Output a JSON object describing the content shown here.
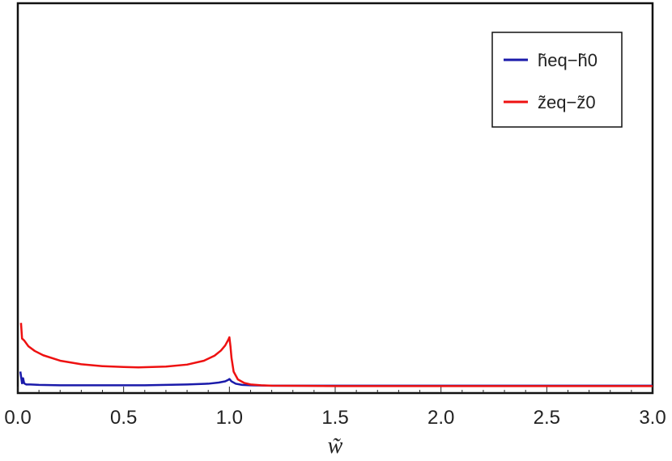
{
  "chart_data": {
    "type": "line",
    "title": "",
    "xlabel": "w̃",
    "ylabel": "",
    "xlim": [
      0,
      3
    ],
    "ylim": [
      0,
      1
    ],
    "xticks": [
      "0.0",
      "0.5",
      "1.0",
      "1.5",
      "2.0",
      "2.5",
      "3.0"
    ],
    "yticks": [],
    "grid": false,
    "legend_position": "top-right",
    "series": [
      {
        "name": "h̃eq−h̃0",
        "color": "#1a1aaa",
        "x": [
          0.012,
          0.02,
          0.025,
          0.03,
          0.04,
          0.06,
          0.1,
          0.2,
          0.4,
          0.6,
          0.8,
          0.9,
          0.95,
          0.98,
          0.995,
          1.0,
          1.01,
          1.03,
          1.06,
          1.1,
          1.2,
          1.5,
          2.0,
          2.5,
          3.0
        ],
        "y": [
          0.055,
          0.025,
          0.038,
          0.025,
          0.022,
          0.022,
          0.021,
          0.02,
          0.02,
          0.02,
          0.022,
          0.024,
          0.027,
          0.03,
          0.034,
          0.036,
          0.03,
          0.024,
          0.021,
          0.02,
          0.019,
          0.019,
          0.019,
          0.019,
          0.019
        ]
      },
      {
        "name": "z̃eq−z̃0",
        "color": "#ee1111",
        "x": [
          0.015,
          0.02,
          0.03,
          0.05,
          0.08,
          0.12,
          0.2,
          0.3,
          0.4,
          0.5,
          0.57,
          0.7,
          0.8,
          0.88,
          0.93,
          0.96,
          0.98,
          0.995,
          1.0,
          1.005,
          1.01,
          1.02,
          1.04,
          1.07,
          1.1,
          1.15,
          1.2,
          1.5,
          2.0,
          2.5,
          3.0
        ],
        "y": [
          0.18,
          0.14,
          0.135,
          0.12,
          0.108,
          0.097,
          0.083,
          0.074,
          0.069,
          0.067,
          0.066,
          0.068,
          0.073,
          0.083,
          0.096,
          0.109,
          0.122,
          0.137,
          0.143,
          0.12,
          0.09,
          0.055,
          0.035,
          0.026,
          0.022,
          0.02,
          0.019,
          0.018,
          0.018,
          0.018,
          0.018
        ]
      }
    ]
  }
}
